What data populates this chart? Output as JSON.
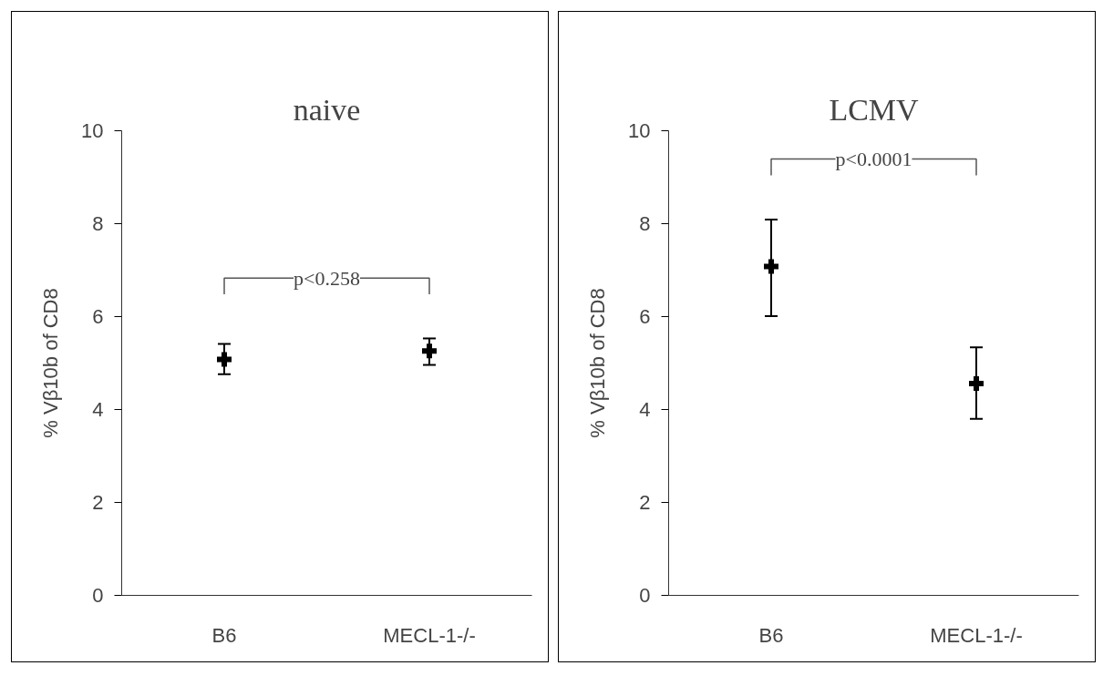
{
  "chart_data": [
    {
      "type": "scatter",
      "title": "naive",
      "ylabel": "% Vβ10b of CD8",
      "categories": [
        "B6",
        "MECL-1-/-"
      ],
      "series": [
        {
          "color": "#000000",
          "values": [
            5.08,
            5.26
          ],
          "errors": [
            [
              4.76,
              5.41
            ],
            [
              4.96,
              5.53
            ]
          ]
        }
      ],
      "ylim": [
        0,
        10
      ],
      "yticks": [
        0,
        2,
        4,
        6,
        8,
        10
      ],
      "marker": "cross",
      "annotations": [
        "p<0.258"
      ]
    },
    {
      "type": "scatter",
      "title": "LCMV",
      "ylabel": "% Vβ10b of CD8",
      "categories": [
        "B6",
        "MECL-1-/-"
      ],
      "series": [
        {
          "color": "#000000",
          "values": [
            7.08,
            4.56
          ],
          "errors": [
            [
              6.01,
              8.09
            ],
            [
              3.8,
              5.34
            ]
          ]
        }
      ],
      "ylim": [
        0,
        10
      ],
      "yticks": [
        0,
        2,
        4,
        6,
        8,
        10
      ],
      "marker": "cross",
      "annotations": [
        "p<0.0001"
      ]
    }
  ]
}
